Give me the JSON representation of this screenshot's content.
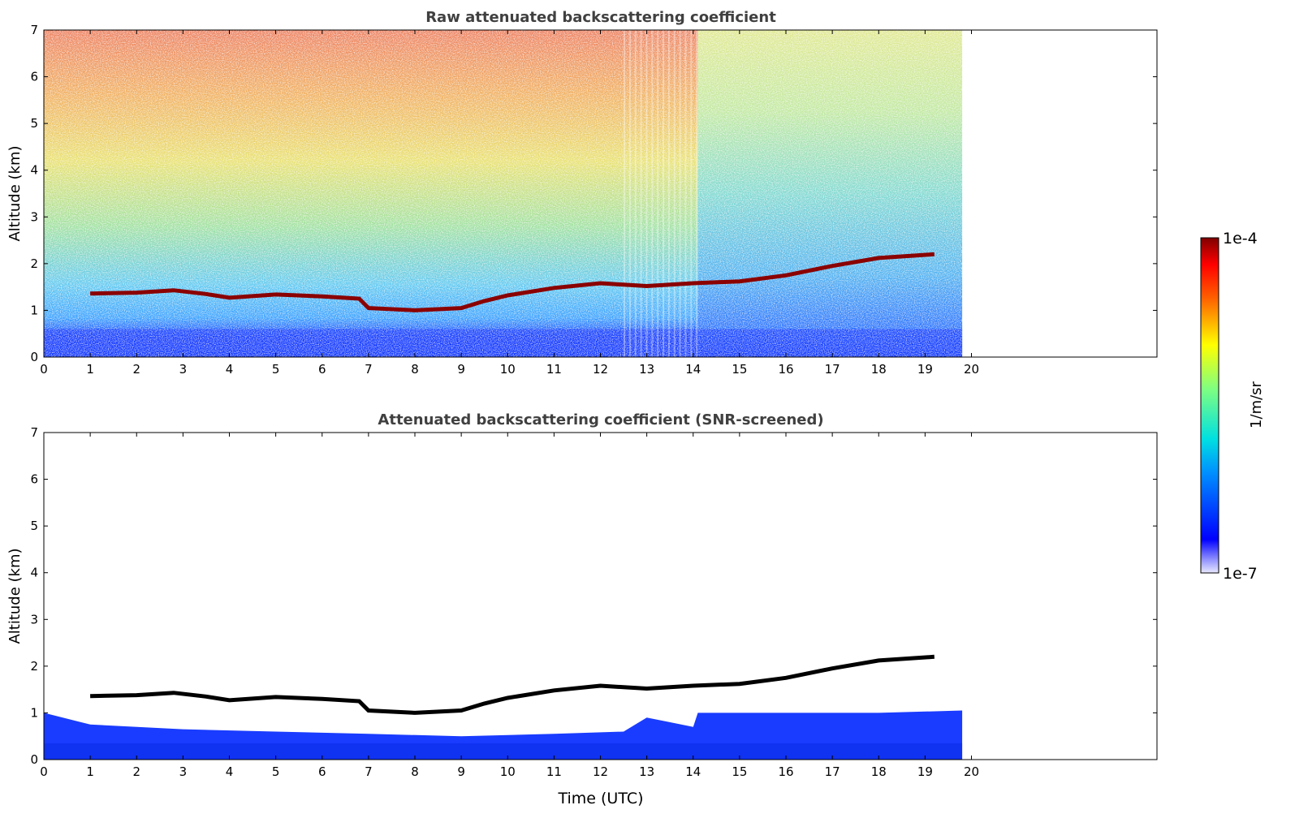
{
  "chart_data": [
    {
      "type": "heatmap",
      "title": "Raw attenuated backscattering coefficient",
      "xlabel": "",
      "ylabel": "Altitude (km)",
      "xlim": [
        0,
        24
      ],
      "ylim": [
        0,
        7
      ],
      "xticks": [
        "0",
        "1",
        "2",
        "3",
        "4",
        "5",
        "6",
        "7",
        "8",
        "9",
        "10",
        "11",
        "12",
        "13",
        "14",
        "15",
        "16",
        "17",
        "18",
        "19",
        "20"
      ],
      "yticks": [
        "0",
        "1",
        "2",
        "3",
        "4",
        "5",
        "6",
        "7"
      ],
      "data_end_time": 19.8,
      "cloud_layer": [
        [
          1.0,
          1.36
        ],
        [
          2.0,
          1.38
        ],
        [
          2.8,
          1.43
        ],
        [
          3.5,
          1.35
        ],
        [
          4.0,
          1.27
        ],
        [
          5.0,
          1.34
        ],
        [
          6.0,
          1.3
        ],
        [
          6.8,
          1.25
        ],
        [
          7.0,
          1.05
        ],
        [
          8.0,
          1.0
        ],
        [
          9.0,
          1.05
        ],
        [
          9.5,
          1.2
        ],
        [
          10.0,
          1.32
        ],
        [
          11.0,
          1.48
        ],
        [
          12.0,
          1.58
        ],
        [
          12.5,
          1.55
        ],
        [
          13.0,
          1.52
        ],
        [
          14.0,
          1.58
        ],
        [
          15.0,
          1.62
        ],
        [
          16.0,
          1.75
        ],
        [
          17.0,
          1.95
        ],
        [
          18.0,
          2.12
        ],
        [
          19.2,
          2.2
        ]
      ],
      "grid": false
    },
    {
      "type": "heatmap",
      "title": "Attenuated backscattering coefficient (SNR-screened)",
      "xlabel": "Time (UTC)",
      "ylabel": "Altitude (km)",
      "xlim": [
        0,
        24
      ],
      "ylim": [
        0,
        7
      ],
      "xticks": [
        "0",
        "1",
        "2",
        "3",
        "4",
        "5",
        "6",
        "7",
        "8",
        "9",
        "10",
        "11",
        "12",
        "13",
        "14",
        "15",
        "16",
        "17",
        "18",
        "19",
        "20"
      ],
      "yticks": [
        "0",
        "1",
        "2",
        "3",
        "4",
        "5",
        "6",
        "7"
      ],
      "data_end_time": 19.8,
      "boundary_layer_top": [
        [
          0,
          1.0
        ],
        [
          1,
          0.75
        ],
        [
          3,
          0.65
        ],
        [
          5,
          0.6
        ],
        [
          7,
          0.55
        ],
        [
          9,
          0.5
        ],
        [
          11,
          0.55
        ],
        [
          12.5,
          0.6
        ],
        [
          13,
          0.9
        ],
        [
          14,
          0.7
        ],
        [
          14.1,
          1.0
        ],
        [
          16,
          1.0
        ],
        [
          18,
          1.0
        ],
        [
          19.8,
          1.05
        ]
      ],
      "grid": false
    }
  ],
  "colorbar": {
    "label": "1/m/sr",
    "max_label": "1e-4",
    "min_label": "1e-7",
    "colormap": "jet"
  },
  "colors": {
    "title_text": "#404040",
    "axis": "#000000",
    "cloud": "#8b0000",
    "cloud_screened": "#000000"
  }
}
